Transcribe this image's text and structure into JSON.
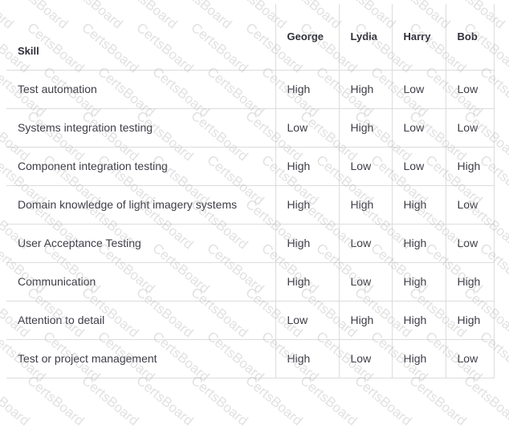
{
  "watermark": "CertsBoard",
  "table": {
    "headers": [
      "Skill",
      "George",
      "Lydia",
      "Harry",
      "Bob"
    ],
    "rows": [
      {
        "skill": "Test automation",
        "values": [
          "High",
          "High",
          "Low",
          "Low"
        ]
      },
      {
        "skill": "Systems integration testing",
        "values": [
          "Low",
          "High",
          "Low",
          "Low"
        ]
      },
      {
        "skill": "Component integration testing",
        "values": [
          "High",
          "Low",
          "Low",
          "High"
        ]
      },
      {
        "skill": "Domain knowledge of light imagery systems",
        "values": [
          "High",
          "High",
          "High",
          "Low"
        ]
      },
      {
        "skill": "User Acceptance Testing",
        "values": [
          "High",
          "Low",
          "High",
          "Low"
        ]
      },
      {
        "skill": "Communication",
        "values": [
          "High",
          "Low",
          "High",
          "High"
        ]
      },
      {
        "skill": "Attention to detail",
        "values": [
          "Low",
          "High",
          "High",
          "High"
        ]
      },
      {
        "skill": "Test or project management",
        "values": [
          "High",
          "Low",
          "High",
          "Low"
        ]
      }
    ]
  }
}
